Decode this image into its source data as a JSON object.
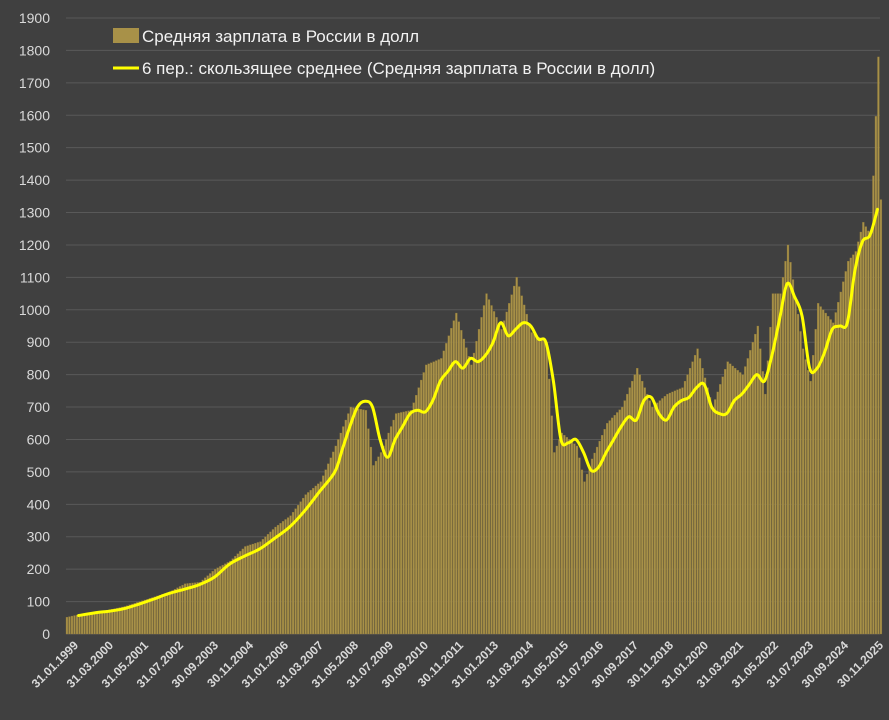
{
  "chart_data": {
    "type": "bar",
    "ylim": [
      0,
      1900
    ],
    "yticks": [
      0,
      100,
      200,
      300,
      400,
      500,
      600,
      700,
      800,
      900,
      1000,
      1100,
      1200,
      1300,
      1400,
      1500,
      1600,
      1700,
      1800,
      1900
    ],
    "x_start": "1999-01",
    "x_end": "2026-01",
    "xtick_labels": [
      "31.01.1999",
      "31.03.2000",
      "31.05.2001",
      "31.07.2002",
      "30.09.2003",
      "30.11.2004",
      "31.01.2006",
      "31.03.2007",
      "31.05.2008",
      "31.07.2009",
      "30.09.2010",
      "30.11.2011",
      "31.01.2013",
      "31.03.2014",
      "31.05.2015",
      "31.07.2016",
      "30.09.2017",
      "30.11.2018",
      "31.01.2020",
      "31.03.2021",
      "31.05.2022",
      "31.07.2023",
      "30.09.2024",
      "30.11.2025"
    ],
    "grid": true,
    "legend": "top-left",
    "colors": {
      "bars": "#a89148",
      "moving_average": "#ffff00",
      "background": "#404040",
      "grid": "#595959"
    },
    "series": [
      {
        "name": "Средняя зарплата в России в долл",
        "kind": "bar",
        "points": [
          [
            "1999-01",
            52
          ],
          [
            "1999-07",
            62
          ],
          [
            "2000-01",
            68
          ],
          [
            "2000-06",
            75
          ],
          [
            "2000-12",
            85
          ],
          [
            "2001-06",
            100
          ],
          [
            "2001-12",
            115
          ],
          [
            "2002-06",
            130
          ],
          [
            "2002-12",
            155
          ],
          [
            "2003-06",
            160
          ],
          [
            "2003-12",
            200
          ],
          [
            "2004-06",
            225
          ],
          [
            "2004-12",
            270
          ],
          [
            "2005-06",
            285
          ],
          [
            "2005-12",
            330
          ],
          [
            "2006-06",
            365
          ],
          [
            "2006-12",
            430
          ],
          [
            "2007-06",
            470
          ],
          [
            "2007-12",
            580
          ],
          [
            "2008-06",
            700
          ],
          [
            "2008-12",
            690
          ],
          [
            "2009-03",
            520
          ],
          [
            "2009-06",
            560
          ],
          [
            "2009-12",
            680
          ],
          [
            "2010-06",
            690
          ],
          [
            "2010-12",
            830
          ],
          [
            "2011-06",
            850
          ],
          [
            "2011-12",
            990
          ],
          [
            "2012-06",
            830
          ],
          [
            "2012-12",
            1050
          ],
          [
            "2013-06",
            940
          ],
          [
            "2013-12",
            1100
          ],
          [
            "2014-06",
            930
          ],
          [
            "2014-12",
            900
          ],
          [
            "2015-03",
            560
          ],
          [
            "2015-06",
            620
          ],
          [
            "2015-12",
            580
          ],
          [
            "2016-03",
            470
          ],
          [
            "2016-06",
            540
          ],
          [
            "2016-12",
            650
          ],
          [
            "2017-06",
            700
          ],
          [
            "2017-12",
            820
          ],
          [
            "2018-06",
            700
          ],
          [
            "2018-12",
            740
          ],
          [
            "2019-06",
            760
          ],
          [
            "2019-12",
            880
          ],
          [
            "2020-06",
            700
          ],
          [
            "2020-12",
            840
          ],
          [
            "2021-06",
            800
          ],
          [
            "2021-12",
            950
          ],
          [
            "2022-03",
            740
          ],
          [
            "2022-06",
            1050
          ],
          [
            "2022-09",
            1050
          ],
          [
            "2022-12",
            1200
          ],
          [
            "2023-06",
            880
          ],
          [
            "2023-09",
            780
          ],
          [
            "2023-12",
            1020
          ],
          [
            "2024-06",
            960
          ],
          [
            "2024-12",
            1150
          ],
          [
            "2025-03",
            1180
          ],
          [
            "2025-06",
            1270
          ],
          [
            "2025-09",
            1230
          ],
          [
            "2025-12",
            1780
          ],
          [
            "2026-01",
            1340
          ]
        ]
      },
      {
        "name": "6 пер.: скользящее среднее (Средняя зарплата в России в долл)",
        "kind": "line",
        "points": [
          [
            "1999-06",
            57
          ],
          [
            "2000-01",
            66
          ],
          [
            "2000-06",
            70
          ],
          [
            "2000-12",
            78
          ],
          [
            "2001-06",
            92
          ],
          [
            "2001-12",
            108
          ],
          [
            "2002-06",
            125
          ],
          [
            "2002-12",
            138
          ],
          [
            "2003-06",
            152
          ],
          [
            "2003-12",
            175
          ],
          [
            "2004-06",
            215
          ],
          [
            "2004-12",
            240
          ],
          [
            "2005-06",
            262
          ],
          [
            "2005-12",
            295
          ],
          [
            "2006-06",
            330
          ],
          [
            "2006-12",
            380
          ],
          [
            "2007-06",
            440
          ],
          [
            "2007-12",
            500
          ],
          [
            "2008-03",
            570
          ],
          [
            "2008-06",
            640
          ],
          [
            "2008-09",
            700
          ],
          [
            "2008-12",
            718
          ],
          [
            "2009-03",
            700
          ],
          [
            "2009-06",
            600
          ],
          [
            "2009-09",
            545
          ],
          [
            "2009-12",
            600
          ],
          [
            "2010-03",
            640
          ],
          [
            "2010-06",
            680
          ],
          [
            "2010-09",
            690
          ],
          [
            "2010-12",
            685
          ],
          [
            "2011-03",
            720
          ],
          [
            "2011-06",
            780
          ],
          [
            "2011-09",
            810
          ],
          [
            "2011-12",
            840
          ],
          [
            "2012-03",
            820
          ],
          [
            "2012-06",
            850
          ],
          [
            "2012-09",
            840
          ],
          [
            "2012-12",
            860
          ],
          [
            "2013-03",
            900
          ],
          [
            "2013-06",
            960
          ],
          [
            "2013-09",
            920
          ],
          [
            "2013-12",
            940
          ],
          [
            "2014-03",
            960
          ],
          [
            "2014-06",
            950
          ],
          [
            "2014-09",
            910
          ],
          [
            "2014-12",
            900
          ],
          [
            "2015-03",
            780
          ],
          [
            "2015-06",
            600
          ],
          [
            "2015-09",
            590
          ],
          [
            "2015-12",
            600
          ],
          [
            "2016-03",
            560
          ],
          [
            "2016-06",
            505
          ],
          [
            "2016-09",
            515
          ],
          [
            "2016-12",
            560
          ],
          [
            "2017-03",
            600
          ],
          [
            "2017-06",
            640
          ],
          [
            "2017-09",
            670
          ],
          [
            "2017-12",
            660
          ],
          [
            "2018-03",
            720
          ],
          [
            "2018-06",
            730
          ],
          [
            "2018-09",
            680
          ],
          [
            "2018-12",
            660
          ],
          [
            "2019-03",
            700
          ],
          [
            "2019-06",
            720
          ],
          [
            "2019-09",
            730
          ],
          [
            "2019-12",
            760
          ],
          [
            "2020-03",
            770
          ],
          [
            "2020-06",
            700
          ],
          [
            "2020-09",
            680
          ],
          [
            "2020-12",
            680
          ],
          [
            "2021-03",
            720
          ],
          [
            "2021-06",
            740
          ],
          [
            "2021-09",
            770
          ],
          [
            "2021-12",
            800
          ],
          [
            "2022-03",
            780
          ],
          [
            "2022-06",
            860
          ],
          [
            "2022-09",
            970
          ],
          [
            "2022-12",
            1080
          ],
          [
            "2023-03",
            1040
          ],
          [
            "2023-06",
            980
          ],
          [
            "2023-09",
            820
          ],
          [
            "2023-12",
            820
          ],
          [
            "2024-03",
            870
          ],
          [
            "2024-06",
            940
          ],
          [
            "2024-09",
            950
          ],
          [
            "2024-12",
            960
          ],
          [
            "2025-03",
            1120
          ],
          [
            "2025-06",
            1210
          ],
          [
            "2025-09",
            1230
          ],
          [
            "2025-12",
            1310
          ]
        ]
      }
    ]
  }
}
